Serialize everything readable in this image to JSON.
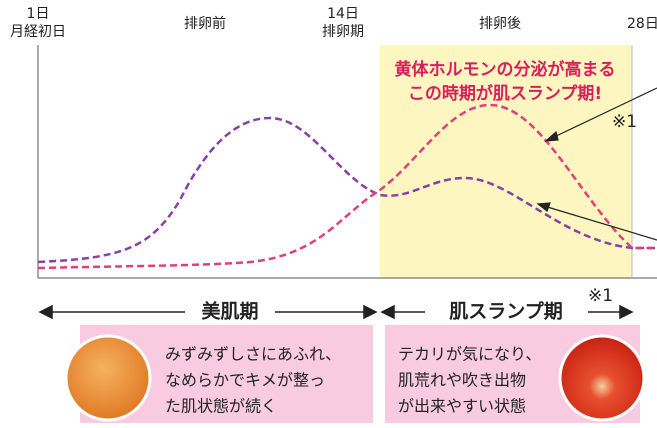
{
  "axis": {
    "start_day": "1日",
    "start_label": "月経初日",
    "mid_day": "14日",
    "mid_label": "排卵期",
    "end_day": "28日"
  },
  "phases": {
    "before": "排卵前",
    "after": "排卵後"
  },
  "highlight": {
    "line1": "黄体ホルモンの分泌が高まる",
    "line2": "この時期が肌スランプ期!"
  },
  "note_top": "※1",
  "periods": {
    "good": "美肌期",
    "slump": "肌スランプ期",
    "slump_note": "※1"
  },
  "boxes": {
    "good": [
      "みずみずしさにあふれ、",
      "なめらかでキメが整っ",
      "た肌状態が続く"
    ],
    "slump": [
      "テカリが気になり、",
      "肌荒れや吹き出物",
      "が出来やすい状態"
    ]
  }
}
